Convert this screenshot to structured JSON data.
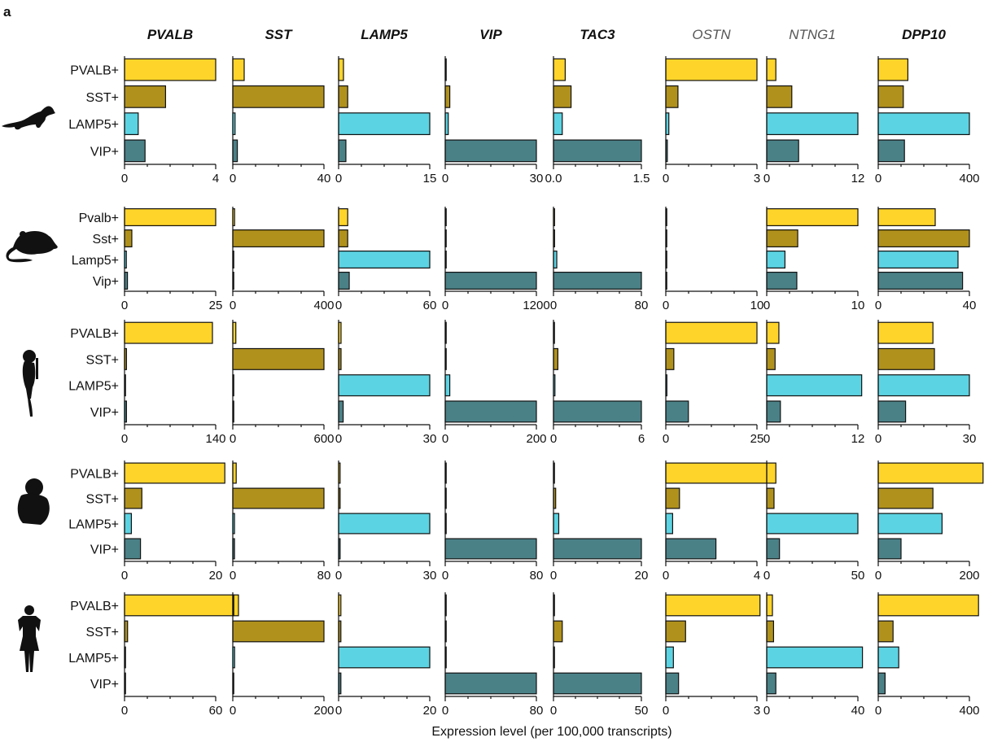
{
  "panel_label": "a",
  "xlabel": "Expression level (per 100,000 transcripts)",
  "genes": [
    "PVALB",
    "SST",
    "LAMP5",
    "VIP",
    "TAC3",
    "OSTN",
    "NTNG1",
    "DPP10"
  ],
  "colors": {
    "PVALB": "#ffd42a",
    "SST": "#b0911c",
    "LAMP5": "#5cd3e2",
    "VIP": "#4a8187"
  },
  "chart_data": {
    "type": "bar",
    "orientation": "horizontal",
    "rows": [
      {
        "species_icon": "ferret-icon",
        "categories": [
          "PVALB+",
          "SST+",
          "LAMP5+",
          "VIP+"
        ],
        "panels": [
          {
            "gene": "PVALB",
            "max": 4,
            "ticks": [
              "0",
              "4"
            ],
            "values": [
              4.0,
              1.8,
              0.6,
              0.9
            ]
          },
          {
            "gene": "SST",
            "max": 40,
            "ticks": [
              "0",
              "40"
            ],
            "values": [
              5,
              40,
              1,
              2
            ]
          },
          {
            "gene": "LAMP5",
            "max": 15,
            "ticks": [
              "0",
              "15"
            ],
            "values": [
              0.8,
              1.5,
              15,
              1.2
            ]
          },
          {
            "gene": "VIP",
            "max": 30,
            "ticks": [
              "0",
              "30"
            ],
            "values": [
              0.3,
              1.5,
              1,
              30
            ]
          },
          {
            "gene": "TAC3",
            "max": 1.5,
            "ticks": [
              "0.0",
              "1.5"
            ],
            "values": [
              0.2,
              0.3,
              0.15,
              1.5
            ]
          },
          {
            "gene": "OSTN",
            "max": 3,
            "ticks": [
              "0",
              "3"
            ],
            "values": [
              3.0,
              0.4,
              0.1,
              0.05
            ]
          },
          {
            "gene": "NTNG1",
            "max": 12,
            "ticks": [
              "0",
              "12"
            ],
            "values": [
              1.2,
              3.3,
              12,
              4.2
            ]
          },
          {
            "gene": "DPP10",
            "max": 400,
            "ticks": [
              "0",
              "400"
            ],
            "values": [
              130,
              110,
              400,
              115
            ]
          }
        ]
      },
      {
        "species_icon": "mouse-icon",
        "categories": [
          "Pvalb+",
          "Sst+",
          "Lamp5+",
          "Vip+"
        ],
        "panels": [
          {
            "gene": "PVALB",
            "max": 25,
            "ticks": [
              "0",
              "25"
            ],
            "values": [
              25,
              2,
              0.5,
              0.8
            ]
          },
          {
            "gene": "SST",
            "max": 400,
            "ticks": [
              "0",
              "400"
            ],
            "values": [
              8,
              400,
              3,
              2
            ]
          },
          {
            "gene": "LAMP5",
            "max": 60,
            "ticks": [
              "0",
              "60"
            ],
            "values": [
              6,
              6,
              60,
              7
            ]
          },
          {
            "gene": "VIP",
            "max": 1200,
            "ticks": [
              "0",
              "1200"
            ],
            "values": [
              5,
              5,
              12,
              1200
            ]
          },
          {
            "gene": "TAC3",
            "max": 80,
            "ticks": [
              "0",
              "80"
            ],
            "values": [
              1,
              1,
              3,
              80
            ]
          },
          {
            "gene": "OSTN",
            "max": 10,
            "ticks": [
              "0",
              "10"
            ],
            "values": [
              0.1,
              0.05,
              0.05,
              0.05
            ]
          },
          {
            "gene": "NTNG1",
            "max": 10,
            "ticks": [
              "0",
              "10"
            ],
            "values": [
              10,
              3.4,
              2,
              3.3
            ]
          },
          {
            "gene": "DPP10",
            "max": 40,
            "ticks": [
              "0",
              "40"
            ],
            "values": [
              25,
              40,
              35,
              37
            ]
          }
        ]
      },
      {
        "species_icon": "marmoset-icon",
        "categories": [
          "PVALB+",
          "SST+",
          "LAMP5+",
          "VIP+"
        ],
        "panels": [
          {
            "gene": "PVALB",
            "max": 140,
            "ticks": [
              "0",
              "140"
            ],
            "values": [
              135,
              3,
              1,
              3
            ]
          },
          {
            "gene": "SST",
            "max": 600,
            "ticks": [
              "0",
              "600"
            ],
            "values": [
              20,
              600,
              3,
              3
            ]
          },
          {
            "gene": "LAMP5",
            "max": 30,
            "ticks": [
              "0",
              "30"
            ],
            "values": [
              0.8,
              0.8,
              30,
              1.5
            ]
          },
          {
            "gene": "VIP",
            "max": 200,
            "ticks": [
              "0",
              "200"
            ],
            "values": [
              1,
              1,
              10,
              200
            ]
          },
          {
            "gene": "TAC3",
            "max": 6,
            "ticks": [
              "0",
              "6"
            ],
            "values": [
              0.05,
              0.3,
              0.1,
              6
            ]
          },
          {
            "gene": "OSTN",
            "max": 25,
            "ticks": [
              "0",
              "25"
            ],
            "values": [
              25,
              2.2,
              0.3,
              6.2
            ]
          },
          {
            "gene": "NTNG1",
            "max": 12,
            "ticks": [
              "0",
              "12"
            ],
            "values": [
              1.6,
              1.1,
              12.5,
              1.8
            ]
          },
          {
            "gene": "DPP10",
            "max": 30,
            "ticks": [
              "0",
              "30"
            ],
            "values": [
              18,
              18.5,
              30,
              9
            ]
          }
        ]
      },
      {
        "species_icon": "macaque-icon",
        "categories": [
          "PVALB+",
          "SST+",
          "LAMP5+",
          "VIP+"
        ],
        "panels": [
          {
            "gene": "PVALB",
            "max": 20,
            "ticks": [
              "0",
              "20"
            ],
            "values": [
              22,
              3.8,
              1.5,
              3.5
            ]
          },
          {
            "gene": "SST",
            "max": 80,
            "ticks": [
              "0",
              "80"
            ],
            "values": [
              3,
              80,
              1.5,
              1.5
            ]
          },
          {
            "gene": "LAMP5",
            "max": 30,
            "ticks": [
              "0",
              "30"
            ],
            "values": [
              0.5,
              0.5,
              30,
              0.5
            ]
          },
          {
            "gene": "VIP",
            "max": 80,
            "ticks": [
              "0",
              "80"
            ],
            "values": [
              0.5,
              0.5,
              0.5,
              80
            ]
          },
          {
            "gene": "TAC3",
            "max": 20,
            "ticks": [
              "0",
              "20"
            ],
            "values": [
              0.2,
              0.5,
              1.2,
              20
            ]
          },
          {
            "gene": "OSTN",
            "max": 4,
            "ticks": [
              "0",
              "4"
            ],
            "values": [
              4.6,
              0.6,
              0.3,
              2.2
            ]
          },
          {
            "gene": "NTNG1",
            "max": 50,
            "ticks": [
              "0",
              "50"
            ],
            "values": [
              5,
              4,
              50,
              7
            ]
          },
          {
            "gene": "DPP10",
            "max": 200,
            "ticks": [
              "0",
              "200"
            ],
            "values": [
              230,
              120,
              140,
              50
            ]
          }
        ]
      },
      {
        "species_icon": "human-icon",
        "categories": [
          "PVALB+",
          "SST+",
          "LAMP5+",
          "VIP+"
        ],
        "panels": [
          {
            "gene": "PVALB",
            "max": 60,
            "ticks": [
              "0",
              "60"
            ],
            "values": [
              75,
              2,
              0.5,
              0.5
            ]
          },
          {
            "gene": "SST",
            "max": 200,
            "ticks": [
              "0",
              "200"
            ],
            "values": [
              2,
              200,
              4,
              1
            ]
          },
          {
            "gene": "LAMP5",
            "max": 20,
            "ticks": [
              "0",
              "20"
            ],
            "values": [
              0.5,
              0.5,
              20,
              0.5
            ]
          },
          {
            "gene": "VIP",
            "max": 80,
            "ticks": [
              "0",
              "80"
            ],
            "values": [
              0.2,
              0.2,
              0.2,
              80
            ]
          },
          {
            "gene": "TAC3",
            "max": 50,
            "ticks": [
              "0",
              "50"
            ],
            "values": [
              0.3,
              5,
              0.3,
              50
            ]
          },
          {
            "gene": "OSTN",
            "max": 3,
            "ticks": [
              "0",
              "3"
            ],
            "values": [
              3.1,
              0.65,
              0.25,
              0.42
            ]
          },
          {
            "gene": "NTNG1",
            "max": 40,
            "ticks": [
              "0",
              "40"
            ],
            "values": [
              2.5,
              3,
              42,
              4
            ]
          },
          {
            "gene": "DPP10",
            "max": 400,
            "ticks": [
              "0",
              "400"
            ],
            "values": [
              440,
              65,
              90,
              30
            ]
          }
        ]
      }
    ]
  }
}
